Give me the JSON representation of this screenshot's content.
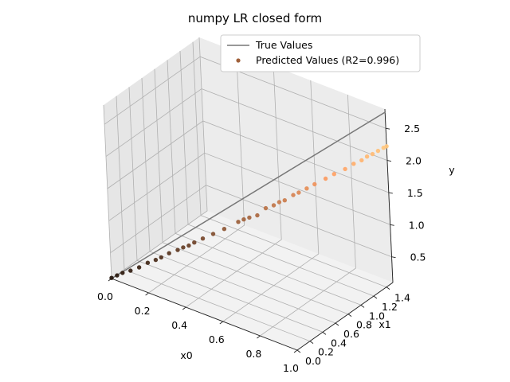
{
  "chart_data": {
    "type": "scatter",
    "title": "numpy LR closed form",
    "xlabel": "x0",
    "ylabel": "x1",
    "zlabel": "y",
    "xlim": [
      0.0,
      1.0
    ],
    "ylim": [
      0.0,
      1.5
    ],
    "zlim": [
      0.1,
      2.8
    ],
    "x_ticks": [
      0.0,
      0.2,
      0.4,
      0.6,
      0.8,
      1.0
    ],
    "y_ticks": [
      0.0,
      0.2,
      0.4,
      0.6,
      0.8,
      1.0,
      1.2,
      1.4
    ],
    "z_ticks": [
      0.5,
      1.0,
      1.5,
      2.0,
      2.5
    ],
    "x_tick_labels": [
      "0.0",
      "0.2",
      "0.4",
      "0.6",
      "0.8",
      "1.0"
    ],
    "y_tick_labels": [
      "0.0",
      "0.2",
      "0.4",
      "0.6",
      "0.8",
      "1.0",
      "1.2",
      "1.4"
    ],
    "z_tick_labels": [
      "0.5",
      "1.0",
      "1.5",
      "2.0",
      "2.5"
    ],
    "grid": true,
    "legend_position": "top-right",
    "colormap": "copper",
    "series": [
      {
        "name": "True Values",
        "kind": "line",
        "color": "#777777",
        "points": [
          [
            0.0,
            0.0,
            0.1
          ],
          [
            1.0,
            1.5,
            2.75
          ]
        ]
      },
      {
        "name": "Predicted Values (R2=0.996)",
        "kind": "scatter",
        "color": "#a0603a",
        "points": [
          [
            0.0,
            0.0,
            0.11
          ],
          [
            0.02,
            0.03,
            0.15
          ],
          [
            0.04,
            0.06,
            0.19
          ],
          [
            0.07,
            0.1,
            0.23
          ],
          [
            0.1,
            0.15,
            0.28
          ],
          [
            0.13,
            0.2,
            0.35
          ],
          [
            0.16,
            0.24,
            0.4
          ],
          [
            0.18,
            0.27,
            0.44
          ],
          [
            0.21,
            0.31,
            0.51
          ],
          [
            0.24,
            0.36,
            0.56
          ],
          [
            0.26,
            0.39,
            0.6
          ],
          [
            0.28,
            0.42,
            0.63
          ],
          [
            0.3,
            0.45,
            0.68
          ],
          [
            0.33,
            0.5,
            0.74
          ],
          [
            0.37,
            0.55,
            0.82
          ],
          [
            0.41,
            0.61,
            0.9
          ],
          [
            0.46,
            0.69,
            1.01
          ],
          [
            0.48,
            0.72,
            1.05
          ],
          [
            0.5,
            0.75,
            1.08
          ],
          [
            0.53,
            0.79,
            1.12
          ],
          [
            0.56,
            0.84,
            1.23
          ],
          [
            0.59,
            0.88,
            1.28
          ],
          [
            0.61,
            0.91,
            1.33
          ],
          [
            0.63,
            0.94,
            1.36
          ],
          [
            0.66,
            0.99,
            1.44
          ],
          [
            0.68,
            1.02,
            1.48
          ],
          [
            0.71,
            1.06,
            1.55
          ],
          [
            0.74,
            1.1,
            1.62
          ],
          [
            0.78,
            1.16,
            1.71
          ],
          [
            0.81,
            1.21,
            1.78
          ],
          [
            0.85,
            1.27,
            1.86
          ],
          [
            0.88,
            1.32,
            1.94
          ],
          [
            0.91,
            1.36,
            2.0
          ],
          [
            0.93,
            1.39,
            2.06
          ],
          [
            0.95,
            1.42,
            2.1
          ],
          [
            0.97,
            1.45,
            2.15
          ],
          [
            0.99,
            1.48,
            2.2
          ],
          [
            1.0,
            1.5,
            2.22
          ]
        ]
      }
    ]
  }
}
